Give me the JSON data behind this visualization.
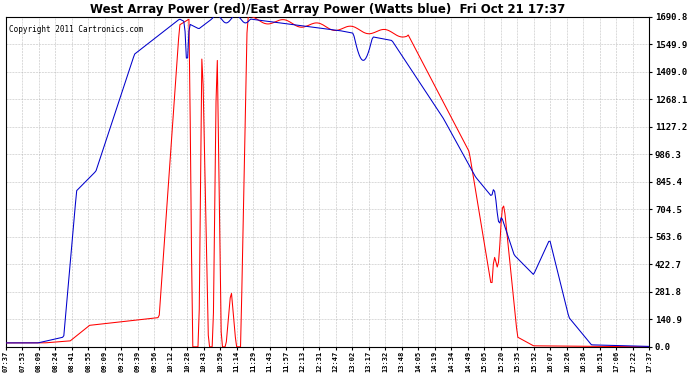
{
  "title": "West Array Power (red)/East Array Power (Watts blue)  Fri Oct 21 17:37",
  "copyright": "Copyright 2011 Cartronics.com",
  "bg_color": "#ffffff",
  "plot_bg_color": "#ffffff",
  "grid_color": "#b0b0b0",
  "red_color": "#ff0000",
  "blue_color": "#0000cc",
  "yticks": [
    0.0,
    140.9,
    281.8,
    422.7,
    563.6,
    704.5,
    845.4,
    986.3,
    1127.2,
    1268.1,
    1409.0,
    1549.9,
    1690.8
  ],
  "ymax": 1690.8,
  "xtick_labels": [
    "07:37",
    "07:53",
    "08:09",
    "08:24",
    "08:41",
    "08:55",
    "09:09",
    "09:23",
    "09:39",
    "09:56",
    "10:12",
    "10:28",
    "10:43",
    "10:59",
    "11:14",
    "11:29",
    "11:43",
    "11:57",
    "12:13",
    "12:31",
    "12:47",
    "13:02",
    "13:17",
    "13:32",
    "13:48",
    "14:05",
    "14:19",
    "14:34",
    "14:49",
    "15:05",
    "15:20",
    "15:35",
    "15:52",
    "16:07",
    "16:26",
    "16:36",
    "16:51",
    "17:06",
    "17:22",
    "17:37"
  ]
}
